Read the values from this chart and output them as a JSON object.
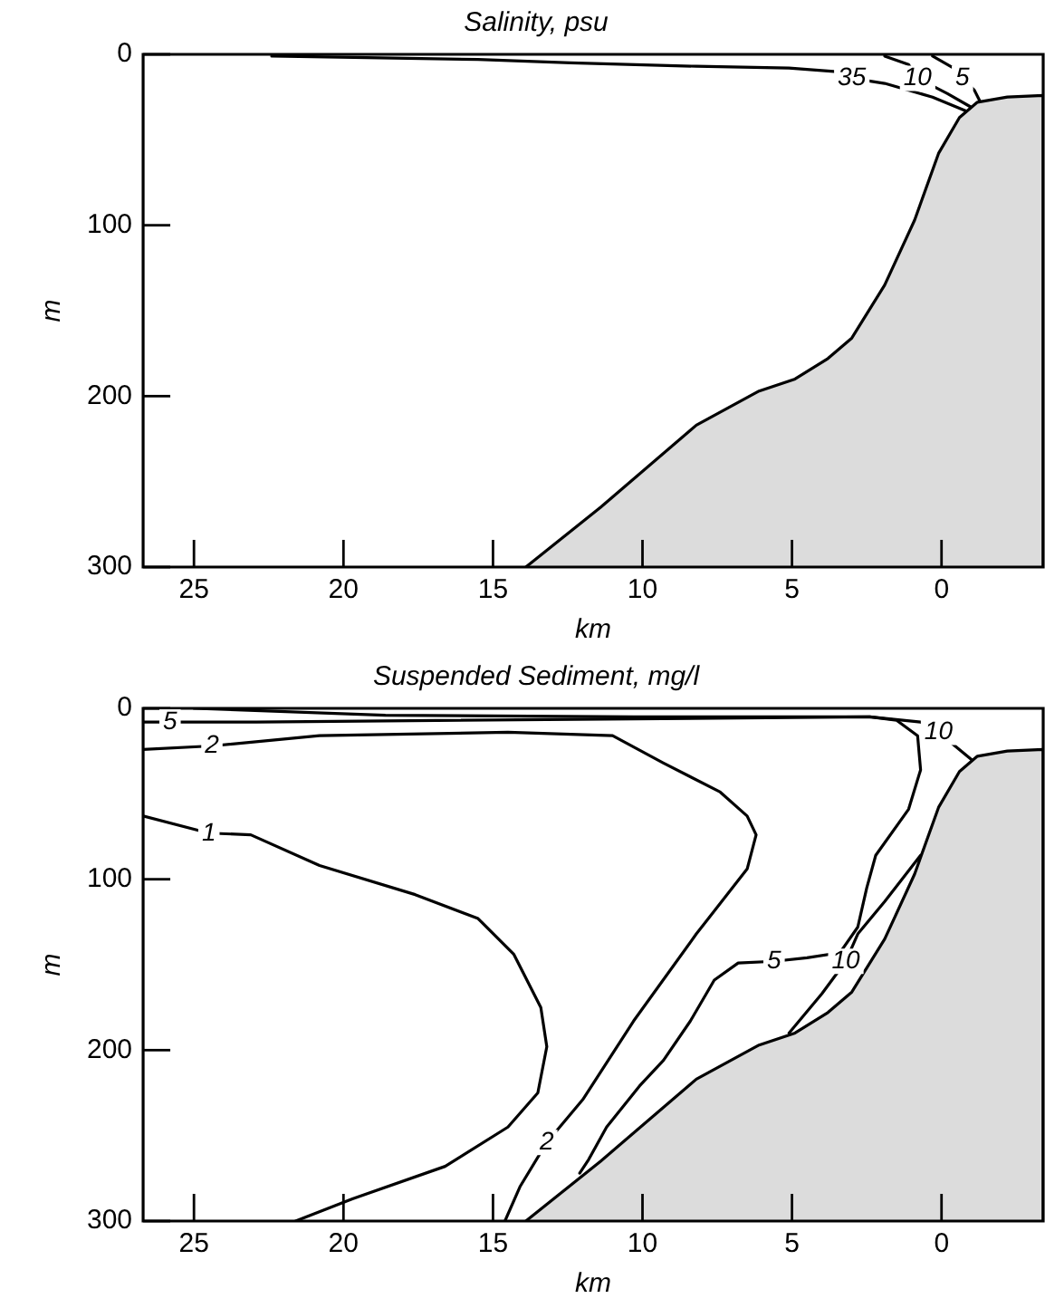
{
  "chart_data": [
    {
      "type": "line",
      "title": "Salinity, psu",
      "xlabel": "km",
      "ylabel": "m",
      "xlim": [
        26.7,
        -3.4
      ],
      "ylim": [
        300,
        0
      ],
      "xticks": [
        25,
        20,
        15,
        10,
        5,
        0
      ],
      "yticks": [
        0,
        100,
        200,
        300
      ],
      "grid": false,
      "legend": false,
      "marker": "none",
      "series": [
        {
          "type": "area",
          "color": "#dcdcdc",
          "x": [
            13.9,
            11.4,
            8.2,
            6.1,
            4.9,
            3.8,
            3.0,
            1.9,
            0.9,
            0.1,
            -0.6,
            -1.2,
            -2.2,
            -3.4,
            -3.4
          ],
          "values": [
            300,
            265,
            217,
            197,
            190,
            178,
            166,
            135,
            97,
            58,
            37,
            28,
            25,
            24,
            300
          ]
        },
        {
          "type": "line",
          "color": "#000000",
          "x": [
            22.4,
            15.5,
            12.4,
            8.2,
            5.1,
            3.6,
            3.0,
            1.9,
            0.3,
            -0.8
          ],
          "values": [
            1,
            3,
            5,
            7,
            8,
            10,
            14,
            17,
            25,
            33
          ]
        },
        {
          "type": "line",
          "color": "#000000",
          "x": [
            1.9,
            1.1,
            0.8,
            -0.2,
            -1.0
          ],
          "values": [
            1,
            6,
            14,
            23,
            31
          ]
        },
        {
          "type": "line",
          "color": "#000000",
          "x": [
            0.3,
            -0.4,
            -0.7,
            -1.1,
            -1.3
          ],
          "values": [
            1,
            8,
            14,
            21,
            28
          ]
        }
      ],
      "annotations": [
        {
          "text": "35",
          "x": 3.0,
          "y": 14
        },
        {
          "text": "10",
          "x": 0.8,
          "y": 14
        },
        {
          "text": "5",
          "x": -0.7,
          "y": 14
        }
      ]
    },
    {
      "type": "line",
      "title": "Suspended Sediment, mg/l",
      "xlabel": "km",
      "ylabel": "m",
      "xlim": [
        26.7,
        -3.4
      ],
      "ylim": [
        300,
        0
      ],
      "xticks": [
        25,
        20,
        15,
        10,
        5,
        0
      ],
      "yticks": [
        0,
        100,
        200,
        300
      ],
      "grid": false,
      "legend": false,
      "marker": "none",
      "series": [
        {
          "type": "area",
          "color": "#dcdcdc",
          "x": [
            13.9,
            11.4,
            8.2,
            6.1,
            4.9,
            3.8,
            3.0,
            1.9,
            0.9,
            0.1,
            -0.6,
            -1.2,
            -2.2,
            -3.4,
            -3.4
          ],
          "values": [
            300,
            265,
            217,
            197,
            190,
            178,
            166,
            135,
            97,
            58,
            37,
            28,
            25,
            24,
            300
          ]
        },
        {
          "type": "line",
          "color": "#000000",
          "x": [
            25.0,
            18.6,
            10.3,
            2.4,
            0.7,
            0.1,
            -1.0
          ],
          "values": [
            0,
            4,
            5,
            5,
            8,
            14,
            30
          ]
        },
        {
          "type": "line",
          "color": "#000000",
          "x": [
            26.7,
            25.8,
            22.9,
            2.4,
            1.5,
            0.8,
            0.7,
            1.1,
            2.2,
            2.5,
            2.8,
            3.4,
            4.5,
            5.6,
            6.8,
            7.6,
            8.4,
            9.3,
            10.1,
            11.2,
            11.8,
            12.1
          ],
          "values": [
            8,
            8,
            8,
            5,
            7,
            16,
            36,
            59,
            86,
            105,
            128,
            143,
            146,
            148,
            149,
            159,
            183,
            206,
            221,
            245,
            264,
            272
          ]
        },
        {
          "type": "line",
          "color": "#000000",
          "x": [
            0.7,
            1.9,
            2.8,
            3.2,
            4.0,
            5.1
          ],
          "values": [
            86,
            113,
            132,
            148,
            167,
            190
          ]
        },
        {
          "type": "line",
          "color": "#000000",
          "x": [
            26.7,
            24.4,
            20.8,
            14.5,
            11.0,
            9.3,
            7.4,
            6.5,
            6.2,
            6.5,
            8.2,
            10.3,
            12.0,
            13.2,
            14.1,
            14.6
          ],
          "values": [
            24,
            22,
            16,
            14,
            16,
            32,
            49,
            63,
            74,
            94,
            132,
            183,
            229,
            254,
            280,
            300
          ]
        },
        {
          "type": "line",
          "color": "#000000",
          "x": [
            26.7,
            24.5,
            23.1,
            20.8,
            17.6,
            15.5,
            14.3,
            13.4,
            13.2,
            13.5,
            14.5,
            16.6,
            19.7,
            21.6
          ],
          "values": [
            63,
            73,
            74,
            92,
            109,
            123,
            144,
            175,
            198,
            225,
            245,
            268,
            287,
            300
          ]
        }
      ],
      "annotations": [
        {
          "text": "5",
          "x": 25.8,
          "y": 8
        },
        {
          "text": "2",
          "x": 24.4,
          "y": 22
        },
        {
          "text": "1",
          "x": 24.5,
          "y": 73
        },
        {
          "text": "10",
          "x": 0.1,
          "y": 14
        },
        {
          "text": "5",
          "x": 5.6,
          "y": 148
        },
        {
          "text": "10",
          "x": 3.2,
          "y": 148
        },
        {
          "text": "2",
          "x": 13.2,
          "y": 254
        }
      ]
    }
  ]
}
